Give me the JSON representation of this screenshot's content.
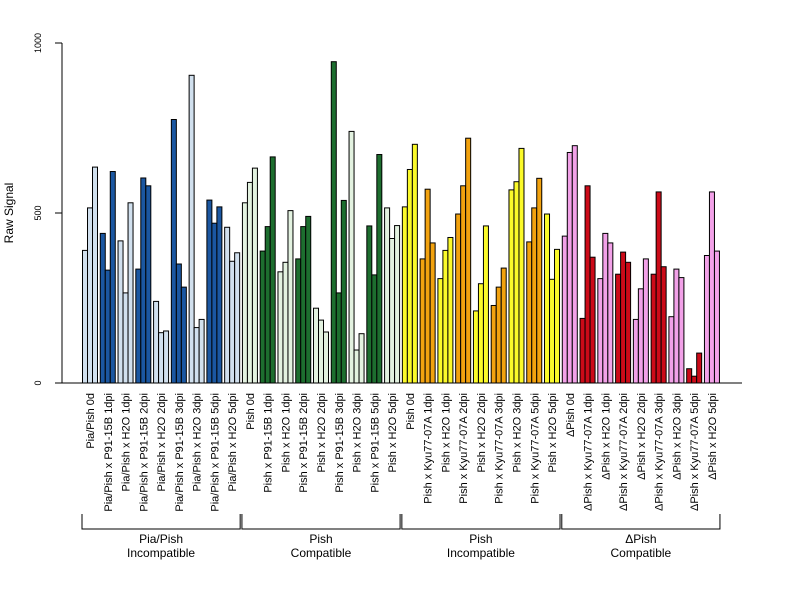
{
  "chart_data": {
    "type": "bar",
    "ylabel": "Raw Signal",
    "xlabel": "",
    "ylim": [
      0,
      1000
    ],
    "yticks": [
      0,
      500,
      1000
    ],
    "grid": false,
    "bars_per_condition": 3,
    "categories": [
      "Pia/Pish 0d",
      "Pia/Pish x P91-15B 1dpi",
      "Pia/Pish x H2O 1dpi",
      "Pia/Pish x P91-15B 2dpi",
      "Pia/Pish x H2O 2dpi",
      "Pia/Pish x P91-15B 3dpi",
      "Pia/Pish x H2O 3dpi",
      "Pia/Pish x P91-15B 5dpi",
      "Pia/Pish x H2O 5dpi",
      "Pish 0d",
      "Pish x P91-15B 1dpi",
      "Pish x H2O 1dpi",
      "Pish x P91-15B 2dpi",
      "Pish x H2O 2dpi",
      "Pish x P91-15B 3dpi",
      "Pish x H2O 3dpi",
      "Pish x P91-15B 5dpi",
      "Pish x H2O 5dpi",
      "Pish 0d",
      "Pish x Kyu77-07A 1dpi",
      "Pish x H2O 1dpi",
      "Pish x Kyu77-07A 2dpi",
      "Pish x H2O 2dpi",
      "Pish x Kyu77-07A 3dpi",
      "Pish x H2O 3dpi",
      "Pish x Kyu77-07A 5dpi",
      "Pish x H2O 5dpi",
      "ΔPish 0d",
      "ΔPish x Kyu77-07A 1dpi",
      "ΔPish x H2O 1dpi",
      "ΔPish x Kyu77-07A 2dpi",
      "ΔPish x H2O 2dpi",
      "ΔPish x Kyu77-07A 3dpi",
      "ΔPish x H2O 3dpi",
      "ΔPish x Kyu77-07A 5dpi",
      "ΔPish x H2O 5dpi"
    ],
    "values": [
      [
        390,
        515,
        635
      ],
      [
        440,
        332,
        622
      ],
      [
        418,
        265,
        530
      ],
      [
        335,
        603,
        580
      ],
      [
        240,
        148,
        153
      ],
      [
        775,
        350,
        282
      ],
      [
        905,
        163,
        187
      ],
      [
        538,
        470,
        518
      ],
      [
        458,
        358,
        383
      ],
      [
        530,
        590,
        632
      ],
      [
        388,
        460,
        665
      ],
      [
        327,
        355,
        507
      ],
      [
        365,
        460,
        490
      ],
      [
        220,
        185,
        150
      ],
      [
        945,
        265,
        537
      ],
      [
        740,
        97,
        145
      ],
      [
        462,
        318,
        672
      ],
      [
        515,
        425,
        463
      ],
      [
        518,
        628,
        702
      ],
      [
        365,
        570,
        412
      ],
      [
        307,
        390,
        428
      ],
      [
        497,
        580,
        720
      ],
      [
        212,
        292,
        462
      ],
      [
        228,
        282,
        338
      ],
      [
        568,
        592,
        690
      ],
      [
        415,
        515,
        602
      ],
      [
        497,
        305,
        393
      ],
      [
        432,
        678,
        698
      ],
      [
        190,
        580,
        370
      ],
      [
        307,
        440,
        412
      ],
      [
        320,
        385,
        355
      ],
      [
        187,
        277,
        365
      ],
      [
        320,
        562,
        342
      ],
      [
        195,
        335,
        310
      ],
      [
        42,
        20,
        88
      ],
      [
        375,
        562,
        388
      ]
    ],
    "bar_colors": [
      "#d1e0ee",
      "#1b57a1",
      "#d1e0ee",
      "#1b57a1",
      "#d1e0ee",
      "#1b57a1",
      "#d1e0ee",
      "#1b57a1",
      "#d1e0ee",
      "#e3f2e0",
      "#1d6e2f",
      "#e3f2e0",
      "#1d6e2f",
      "#e3f2e0",
      "#1d6e2f",
      "#e3f2e0",
      "#1d6e2f",
      "#e3f2e0",
      "#fbfa2a",
      "#f2a20f",
      "#fbfa2a",
      "#f2a20f",
      "#fbfa2a",
      "#f2a20f",
      "#fbfa2a",
      "#f2a20f",
      "#fbfa2a",
      "#f2a1e8",
      "#cc0a18",
      "#f2a1e8",
      "#cc0a18",
      "#f2a1e8",
      "#cc0a18",
      "#f2a1e8",
      "#cc0a18",
      "#f2a1e8"
    ],
    "groups": [
      {
        "line1": "Pia/Pish",
        "line2": "Incompatible",
        "start": 0,
        "end": 8
      },
      {
        "line1": "Pish",
        "line2": "Compatible",
        "start": 9,
        "end": 17
      },
      {
        "line1": "Pish",
        "line2": "Incompatible",
        "start": 18,
        "end": 26
      },
      {
        "line1": "ΔPish",
        "line2": "Compatible",
        "start": 27,
        "end": 35
      }
    ]
  }
}
